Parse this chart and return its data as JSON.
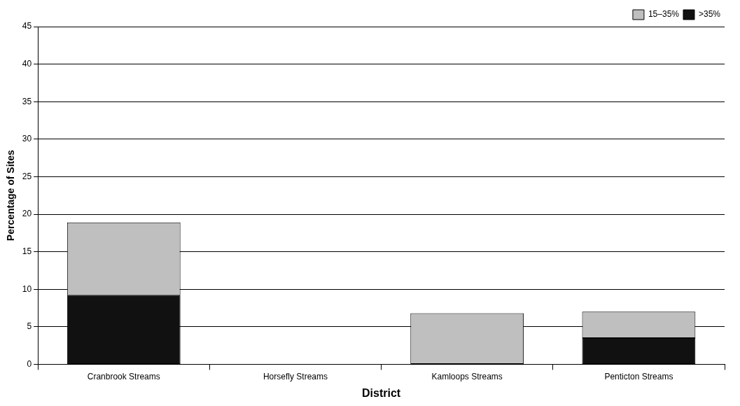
{
  "chart_data": {
    "type": "bar",
    "xlabel": "District",
    "ylabel": "Percentage of Sites",
    "categories": [
      "Cranbrook Streams",
      "Horsefly Streams",
      "Kamloops Streams",
      "Penticton Streams"
    ],
    "stacked": true,
    "series": [
      {
        "name": ">35%",
        "color": "#111111",
        "values": [
          9.2,
          0,
          0,
          3.5
        ]
      },
      {
        "name": "15–35%",
        "color": "#bfbfbf",
        "values": [
          9.7,
          0,
          6.8,
          3.5
        ]
      }
    ],
    "ylim": [
      0,
      45
    ],
    "yticks": [
      0,
      5,
      10,
      15,
      20,
      25,
      30,
      35,
      40,
      45
    ],
    "grid": "y",
    "legend": "top right"
  }
}
